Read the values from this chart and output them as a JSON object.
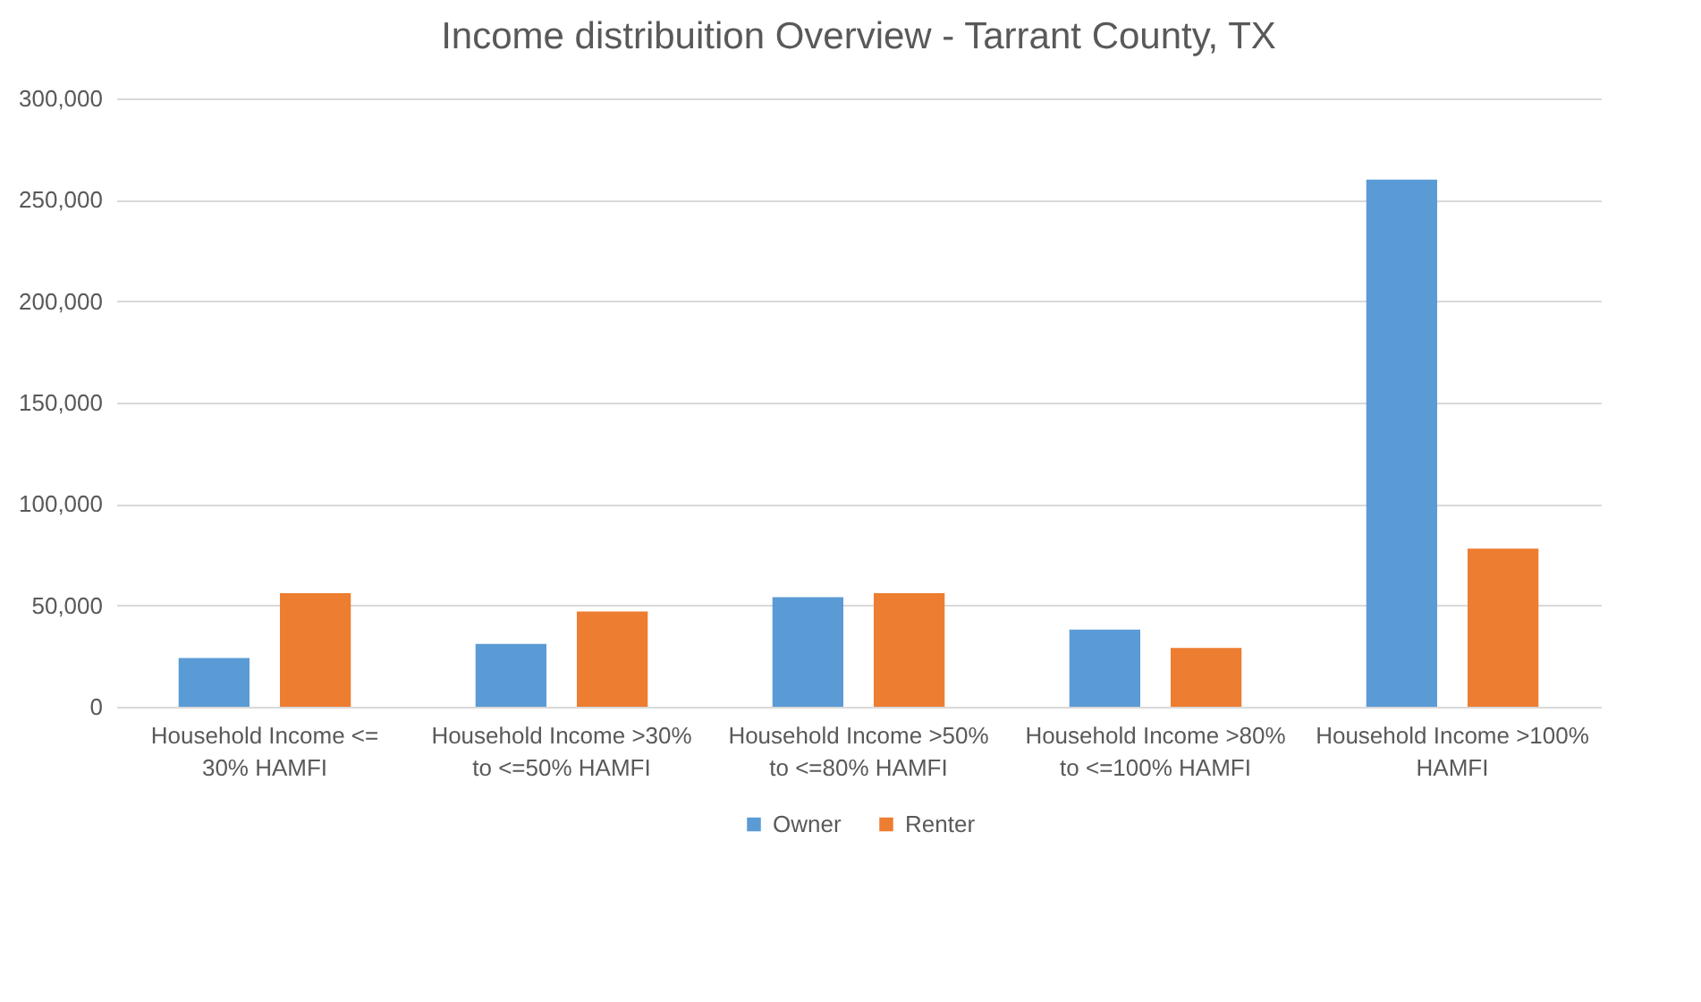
{
  "chart_data": {
    "type": "bar",
    "title": "Income distribuition Overview - Tarrant County, TX",
    "categories": [
      "Household Income <= 30% HAMFI",
      "Household Income >30% to <=50% HAMFI",
      "Household Income >50% to <=80% HAMFI",
      "Household Income >80% to <=100% HAMFI",
      "Household Income >100% HAMFI"
    ],
    "series": [
      {
        "name": "Owner",
        "color": "#5b9bd5",
        "values": [
          24000,
          31000,
          54000,
          38000,
          260000
        ]
      },
      {
        "name": "Renter",
        "color": "#ed7d31",
        "values": [
          56000,
          47000,
          56000,
          29000,
          78000
        ]
      }
    ],
    "ylim": [
      0,
      300000
    ],
    "yticks": [
      0,
      {
        "value": 50000,
        "label": "50,000"
      },
      {
        "value": 100000,
        "label": "100,000"
      },
      {
        "value": 150000,
        "label": "150,000"
      },
      {
        "value": 200000,
        "label": "200,000"
      },
      {
        "value": 250000,
        "label": "250,000"
      },
      {
        "value": 300000,
        "label": "300,000"
      }
    ],
    "grid": "y",
    "legend": "bottom"
  }
}
